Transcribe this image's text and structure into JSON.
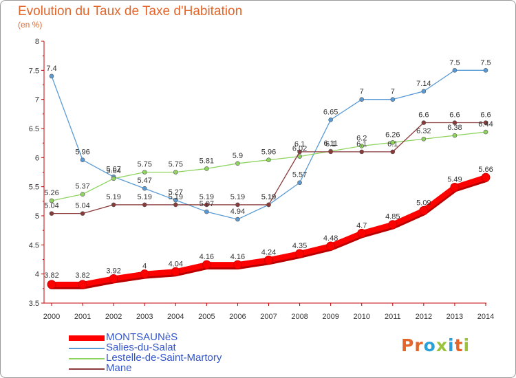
{
  "title": "Evolution du Taux de Taxe d'Habitation",
  "subtitle": "(en %)",
  "logo": {
    "text": "Proxiti",
    "colors": [
      "#e2662a",
      "#e2662a",
      "#2aa0d8",
      "#9bc23c",
      "#2aa0d8",
      "#e2662a",
      "#9bc23c"
    ]
  },
  "chart_data": {
    "type": "line",
    "title": "Evolution du Taux de Taxe d'Habitation",
    "ylabel": "(en %)",
    "xlabel": "",
    "ylim": [
      3.5,
      8
    ],
    "yticks": [
      "3.5",
      "4",
      "4.5",
      "5",
      "5.5",
      "6",
      "6.5",
      "7",
      "7.5",
      "8"
    ],
    "x": [
      "2000",
      "2001",
      "2002",
      "2003",
      "2004",
      "2005",
      "2006",
      "2007",
      "2008",
      "2009",
      "2010",
      "2011",
      "2012",
      "2013",
      "2014"
    ],
    "grid": false,
    "legend": "bottom-left",
    "series": [
      {
        "name": "MONTSAUNèS",
        "color": "#ff0000",
        "values": [
          3.82,
          3.82,
          3.92,
          4,
          4.04,
          4.16,
          4.16,
          4.24,
          4.35,
          4.48,
          4.7,
          4.85,
          5.09,
          5.49,
          5.66
        ],
        "labels": [
          "3.82",
          "3.82",
          "3.92",
          "4",
          "4.04",
          "4.16",
          "4.16",
          "4.24",
          "4.35",
          "4.48",
          "4.7",
          "4.85",
          "5.09",
          "5.49",
          "5.66"
        ]
      },
      {
        "name": "Salies-du-Salat",
        "color": "#5b9bd5",
        "values": [
          7.4,
          5.96,
          5.67,
          5.47,
          5.27,
          5.07,
          4.94,
          5.19,
          5.57,
          6.65,
          7,
          7,
          7.14,
          7.5,
          7.5
        ],
        "labels": [
          "7.4",
          "5.96",
          "5.67",
          "5.47",
          "5.27",
          "5.07",
          "4.94",
          "5.19",
          "5.57",
          "6.65",
          "7",
          "7",
          "7.14",
          "7.5",
          "7.5"
        ]
      },
      {
        "name": "Lestelle-de-Saint-Martory",
        "color": "#8fd45f",
        "values": [
          5.26,
          5.37,
          5.64,
          5.75,
          5.75,
          5.81,
          5.9,
          5.96,
          6.02,
          6.11,
          6.2,
          6.26,
          6.32,
          6.38,
          6.44
        ],
        "labels": [
          "5.26",
          "5.37",
          "5.64",
          "5.75",
          "5.75",
          "5.81",
          "5.9",
          "5.96",
          "6.02",
          "6.11",
          "6.2",
          "6.26",
          "6.32",
          "6.38",
          "6.44"
        ]
      },
      {
        "name": "Mane",
        "color": "#8b3a3a",
        "values": [
          5.04,
          5.04,
          5.19,
          5.19,
          5.19,
          5.19,
          5.19,
          5.19,
          6.1,
          6.1,
          6.1,
          6.1,
          6.6,
          6.6,
          6.6
        ],
        "labels": [
          "5.04",
          "5.04",
          "5.19",
          "5.19",
          "5.19",
          "5.19",
          "5.19",
          "5.19",
          "6.1",
          "6.1",
          "6.1",
          "6.1",
          "6.6",
          "6.6",
          "6.6"
        ]
      }
    ]
  }
}
